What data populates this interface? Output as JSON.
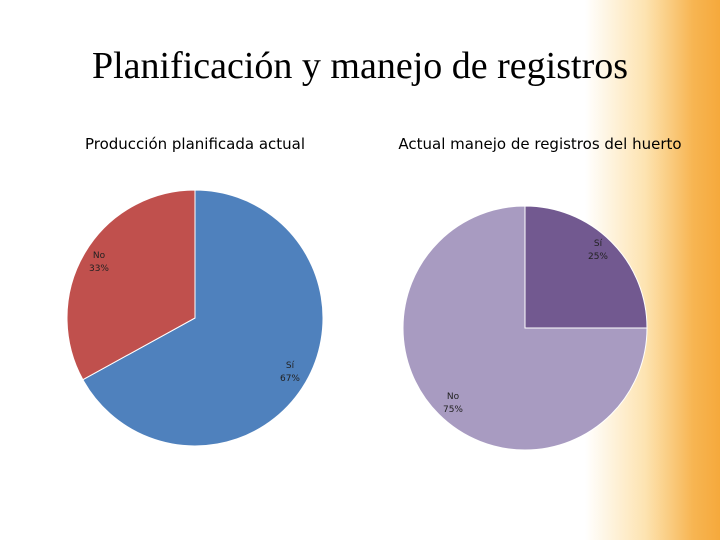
{
  "slide": {
    "title": "Planificación y manejo de registros"
  },
  "chart_data": [
    {
      "type": "pie",
      "title": "Producción planificada actual",
      "slices": [
        {
          "label": "Sí",
          "percent_label": "67%",
          "value": 67,
          "color": "#4f81bd"
        },
        {
          "label": "No",
          "percent_label": "33%",
          "value": 33,
          "color": "#c0504d"
        }
      ]
    },
    {
      "type": "pie",
      "title": "Actual manejo de registros del huerto",
      "slices": [
        {
          "label": "Sí",
          "percent_label": "25%",
          "value": 25,
          "color": "#725990"
        },
        {
          "label": "No",
          "percent_label": "75%",
          "value": 75,
          "color": "#a89bc1"
        }
      ]
    }
  ]
}
